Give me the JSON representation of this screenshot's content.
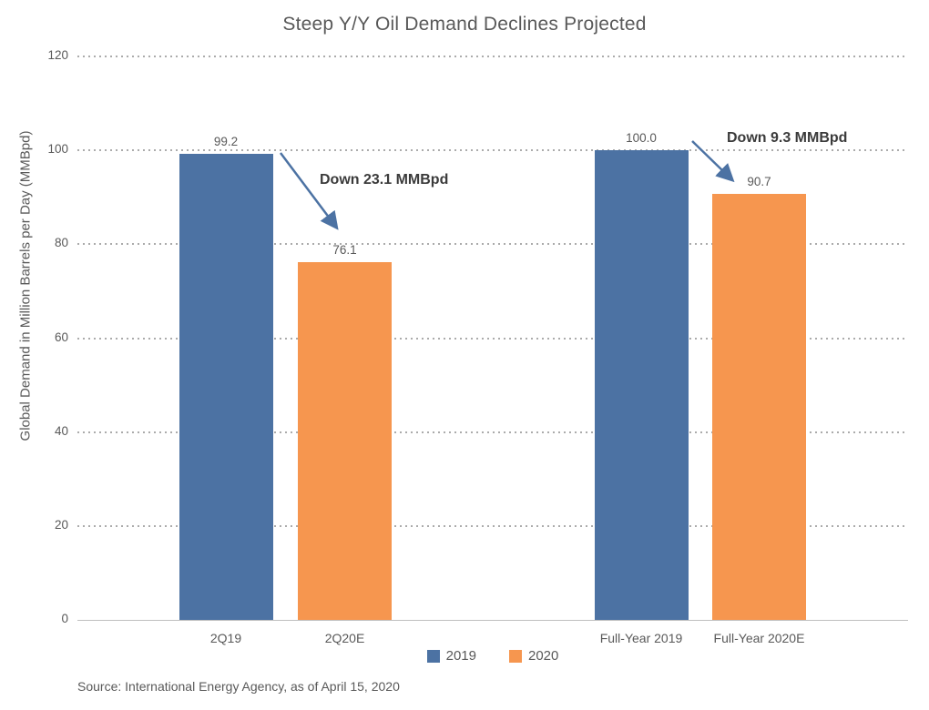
{
  "chart_data": {
    "type": "bar",
    "title": "Steep Y/Y Oil Demand Declines Projected",
    "ylabel": "Global Demand in Million Barrels per Day (MMBpd)",
    "xlabel": "",
    "ylim": [
      0,
      120
    ],
    "yticks": [
      0,
      20,
      40,
      60,
      80,
      100,
      120
    ],
    "grid": "horizontal-dotted",
    "legend_position": "bottom-center",
    "categories": [
      "2Q19",
      "2Q20E",
      "Full-Year 2019",
      "Full-Year 2020E"
    ],
    "values": [
      99.2,
      76.1,
      100.0,
      90.7
    ],
    "value_labels": [
      "99.2",
      "76.1",
      "100.0",
      "90.7"
    ],
    "bar_series": [
      "2019",
      "2020",
      "2019",
      "2020"
    ],
    "series": [
      {
        "name": "2019",
        "color": "#4C72A3"
      },
      {
        "name": "2020",
        "color": "#F6964F"
      }
    ],
    "legend": {
      "entries": [
        {
          "label": "2019",
          "color": "#4C72A3"
        },
        {
          "label": "2020",
          "color": "#F6964F"
        }
      ]
    },
    "annotations": [
      {
        "text": "Down 23.1 MMBpd",
        "arrow_color": "#4C72A3"
      },
      {
        "text": "Down 9.3 MMBpd",
        "arrow_color": "#4C72A3"
      }
    ],
    "source": "Source: International Energy Agency, as of April 15, 2020"
  }
}
